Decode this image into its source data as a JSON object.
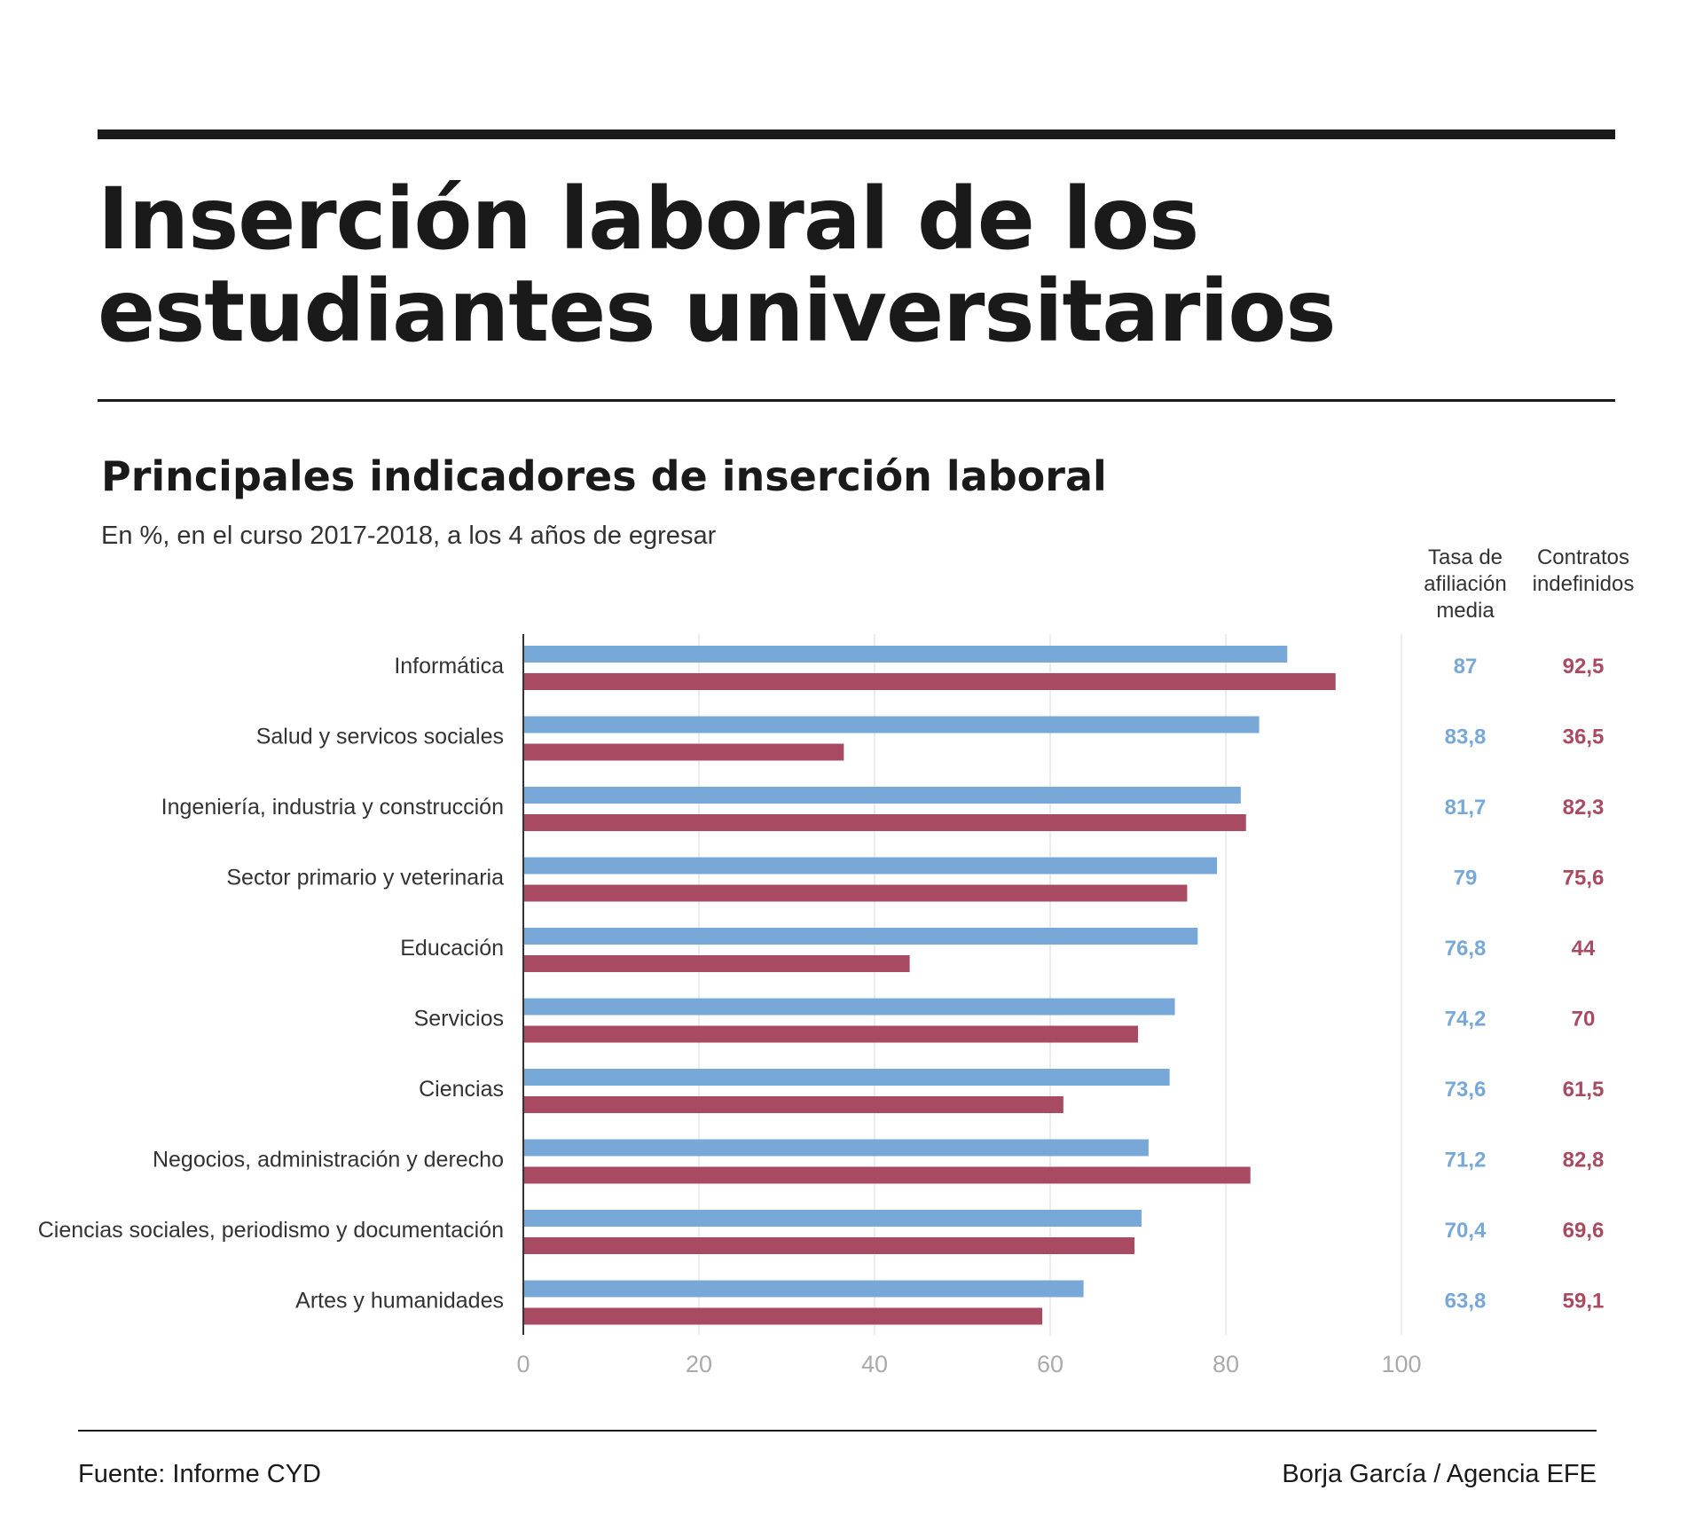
{
  "title": "Inserción laboral de los estudiantes universitarios",
  "footer": {
    "source": "Fuente: Informe CYD",
    "credit": "Borja García / Agencia EFE"
  },
  "columns": {
    "afiliacion": "Tasa de\nafiliación\nmedia",
    "indefinidos": "Contratos\nindefinidos"
  },
  "colors": {
    "afiliacion": "#78a8d8",
    "indefinidos": "#a84b62",
    "axis": "#333333",
    "grid": "#ececec",
    "tick": "#aaaaaa"
  },
  "chart_data": {
    "type": "bar",
    "orientation": "horizontal",
    "title": "Principales indicadores de inserción laboral",
    "subtitle": "En %, en el curso 2017-2018, a los 4 años de egresar",
    "xlim": [
      0,
      100
    ],
    "ticks": [
      0,
      20,
      40,
      60,
      80,
      100
    ],
    "grid": true,
    "categories": [
      "Informática",
      "Salud y servicos sociales",
      "Ingeniería, industria y construcción",
      "Sector primario y veterinaria",
      "Educación",
      "Servicios",
      "Ciencias",
      "Negocios, administración y derecho",
      "Ciencias sociales, periodismo y documentación",
      "Artes y humanidades"
    ],
    "series": [
      {
        "name": "Tasa de afiliación media",
        "values": [
          87,
          83.8,
          81.7,
          79,
          76.8,
          74.2,
          73.6,
          71.2,
          70.4,
          63.8
        ],
        "labels": [
          "87",
          "83,8",
          "81,7",
          "79",
          "76,8",
          "74,2",
          "73,6",
          "71,2",
          "70,4",
          "63,8"
        ]
      },
      {
        "name": "Contratos indefinidos",
        "values": [
          92.5,
          36.5,
          82.3,
          75.6,
          44,
          70,
          61.5,
          82.8,
          69.6,
          59.1
        ],
        "labels": [
          "92,5",
          "36,5",
          "82,3",
          "75,6",
          "44",
          "70",
          "61,5",
          "82,8",
          "69,6",
          "59,1"
        ]
      }
    ]
  }
}
